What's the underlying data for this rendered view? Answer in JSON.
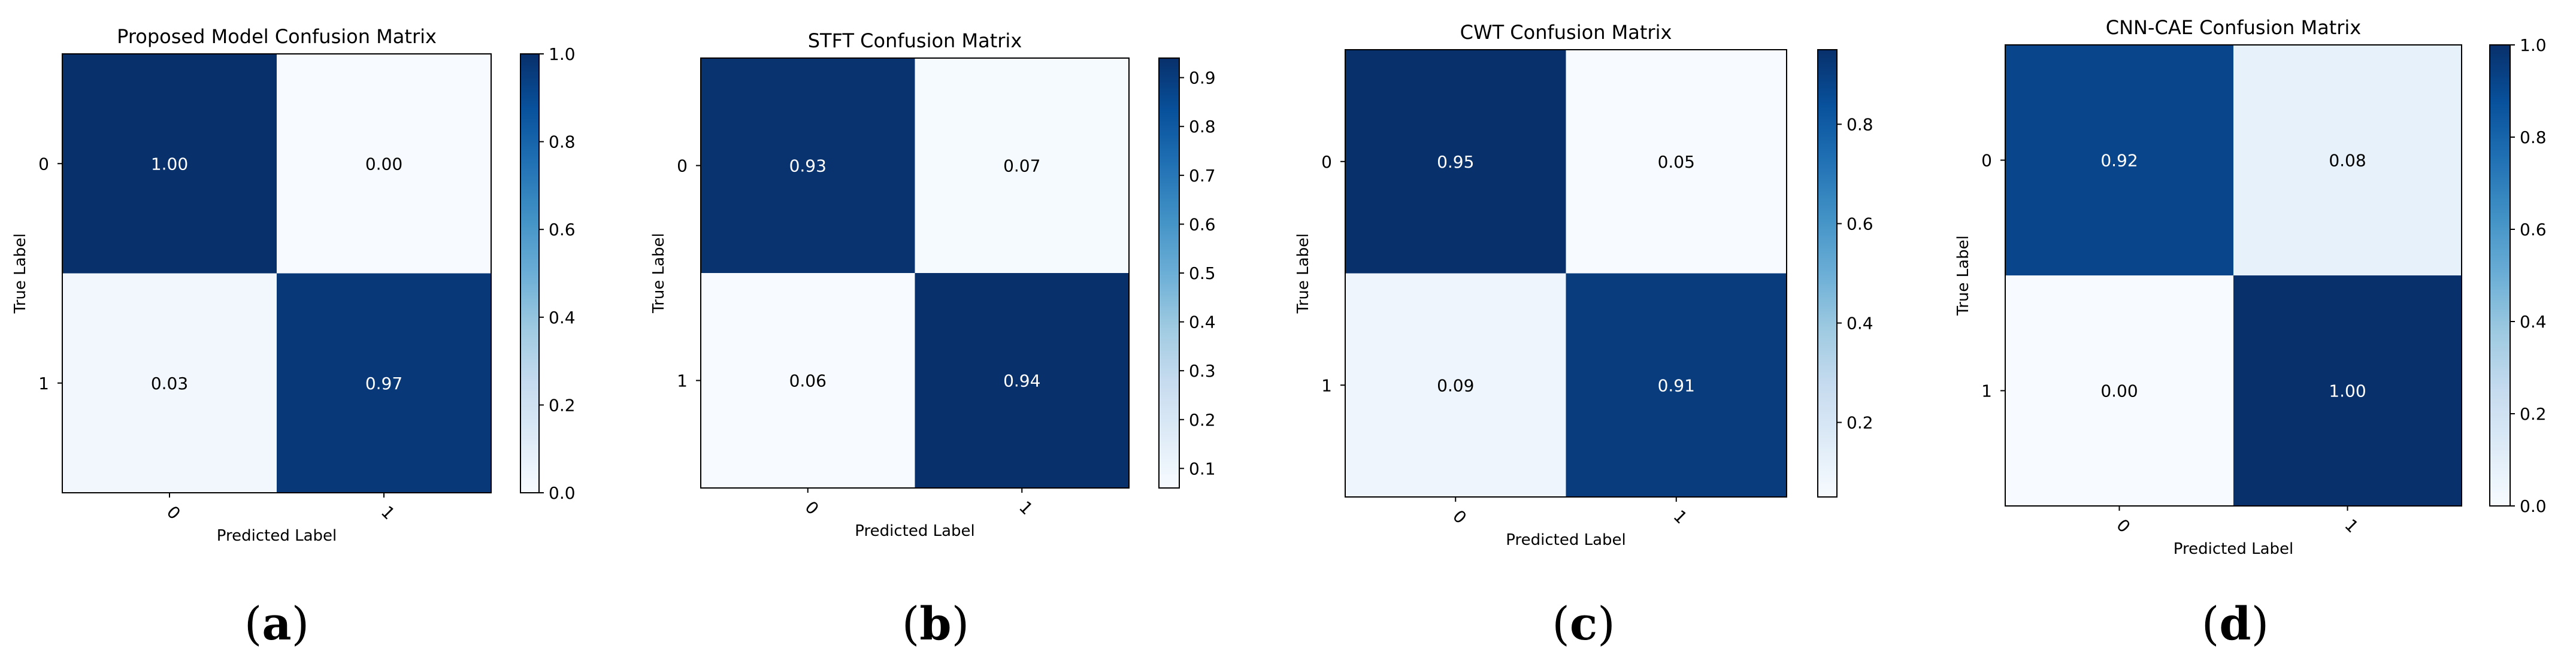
{
  "chart_data": [
    {
      "type": "heatmap",
      "title": "Proposed Model Confusion Matrix",
      "panel_label": "(a)",
      "panel_letter": "a",
      "xlabel": "Predicted Label",
      "ylabel": "True Label",
      "x_ticks": [
        "0",
        "1"
      ],
      "y_ticks": [
        "0",
        "1"
      ],
      "matrix": [
        [
          1.0,
          0.0
        ],
        [
          0.03,
          0.97
        ]
      ],
      "cell_labels": [
        [
          "1.00",
          "0.00"
        ],
        [
          "0.03",
          "0.97"
        ]
      ],
      "colorbar": {
        "min": 0.0,
        "max": 1.0,
        "ticks": [
          "0.0",
          "0.2",
          "0.4",
          "0.6",
          "0.8",
          "1.0"
        ],
        "colormap": "Blues"
      }
    },
    {
      "type": "heatmap",
      "title": "STFT Confusion Matrix",
      "panel_label": "(b)",
      "panel_letter": "b",
      "xlabel": "Predicted Label",
      "ylabel": "True Label",
      "x_ticks": [
        "0",
        "1"
      ],
      "y_ticks": [
        "0",
        "1"
      ],
      "matrix": [
        [
          0.93,
          0.07
        ],
        [
          0.06,
          0.94
        ]
      ],
      "cell_labels": [
        [
          "0.93",
          "0.07"
        ],
        [
          "0.06",
          "0.94"
        ]
      ],
      "colorbar": {
        "min": 0.06,
        "max": 0.94,
        "ticks": [
          "0.1",
          "0.2",
          "0.3",
          "0.4",
          "0.5",
          "0.6",
          "0.7",
          "0.8",
          "0.9"
        ],
        "colormap": "Blues"
      }
    },
    {
      "type": "heatmap",
      "title": "CWT Confusion Matrix",
      "panel_label": "(c)",
      "panel_letter": "c",
      "xlabel": "Predicted Label",
      "ylabel": "True Label",
      "x_ticks": [
        "0",
        "1"
      ],
      "y_ticks": [
        "0",
        "1"
      ],
      "matrix": [
        [
          0.95,
          0.05
        ],
        [
          0.09,
          0.91
        ]
      ],
      "cell_labels": [
        [
          "0.95",
          "0.05"
        ],
        [
          "0.09",
          "0.91"
        ]
      ],
      "colorbar": {
        "min": 0.05,
        "max": 0.95,
        "ticks": [
          "0.2",
          "0.4",
          "0.6",
          "0.8"
        ],
        "colormap": "Blues"
      }
    },
    {
      "type": "heatmap",
      "title": "CNN-CAE Confusion Matrix",
      "panel_label": "(d)",
      "panel_letter": "d",
      "xlabel": "Predicted Label",
      "ylabel": "True Label",
      "x_ticks": [
        "0",
        "1"
      ],
      "y_ticks": [
        "0",
        "1"
      ],
      "matrix": [
        [
          0.92,
          0.08
        ],
        [
          0.0,
          1.0
        ]
      ],
      "cell_labels": [
        [
          "0.92",
          "0.08"
        ],
        [
          "0.00",
          "1.00"
        ]
      ],
      "colorbar": {
        "min": 0.0,
        "max": 1.0,
        "ticks": [
          "0.0",
          "0.2",
          "0.4",
          "0.6",
          "0.8",
          "1.0"
        ],
        "colormap": "Blues"
      }
    }
  ]
}
